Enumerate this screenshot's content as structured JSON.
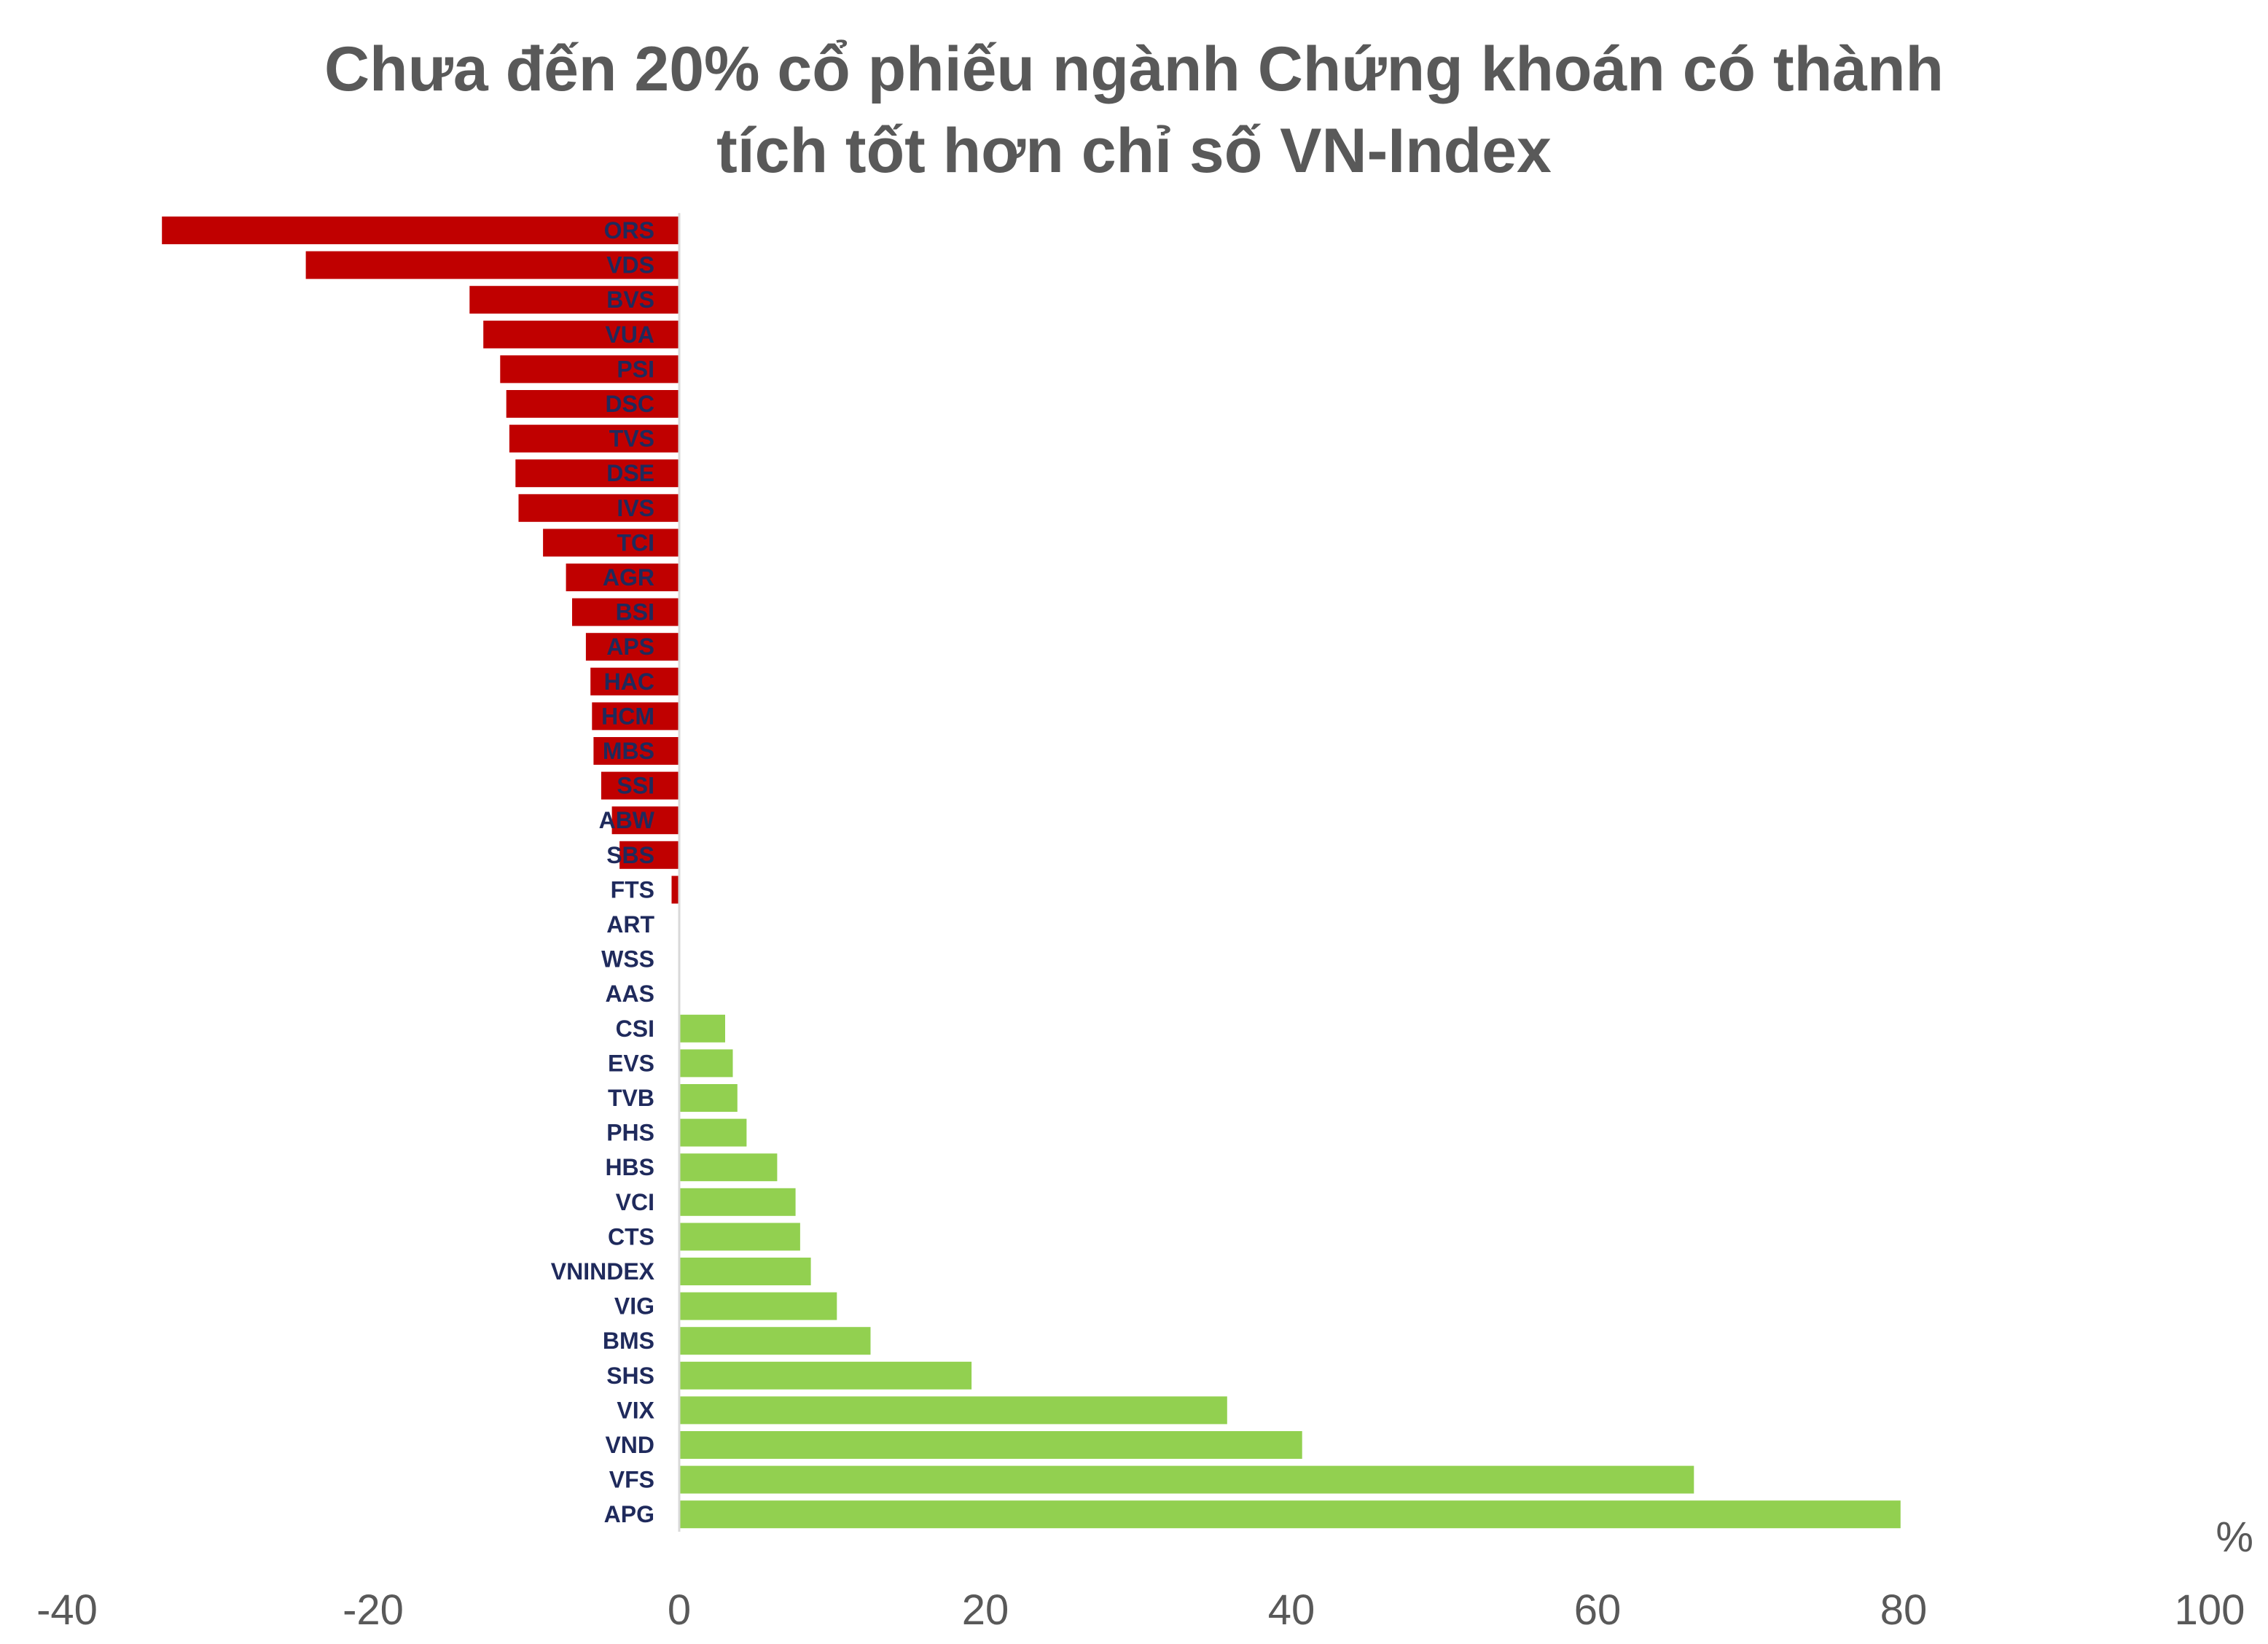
{
  "chart_data": {
    "type": "bar",
    "orientation": "horizontal",
    "title_line1": "Chưa đến 20% cổ phiếu ngành Chứng khoán có thành",
    "title_line2": "tích tốt hơn chỉ số VN-Index",
    "unit": "%",
    "xlim": [
      -40,
      100
    ],
    "x_ticks": [
      "-40",
      "-20",
      "0",
      "20",
      "40",
      "60",
      "80",
      "100"
    ],
    "grid": false,
    "legend": "none",
    "colors": {
      "negative": "#c00000",
      "positive": "#92d050",
      "label": "#1f2a5c",
      "axis_text": "#595959"
    },
    "categories": [
      "ORS",
      "VDS",
      "BVS",
      "VUA",
      "PSI",
      "DSC",
      "TVS",
      "DSE",
      "IVS",
      "TCI",
      "AGR",
      "BSI",
      "APS",
      "HAC",
      "HCM",
      "MBS",
      "SSI",
      "ABW",
      "SBS",
      "FTS",
      "ART",
      "WSS",
      "AAS",
      "CSI",
      "EVS",
      "TVB",
      "PHS",
      "HBS",
      "VCI",
      "CTS",
      "VNINDEX",
      "VIG",
      "BMS",
      "SHS",
      "VIX",
      "VND",
      "VFS",
      "APG"
    ],
    "values": [
      -33.8,
      -24.4,
      -13.7,
      -12.8,
      -11.7,
      -11.3,
      -11.1,
      -10.7,
      -10.5,
      -8.9,
      -7.4,
      -7.0,
      -6.1,
      -5.8,
      -5.7,
      -5.6,
      -5.1,
      -4.4,
      -3.9,
      -0.5,
      0,
      0,
      0,
      3.0,
      3.5,
      3.8,
      4.4,
      6.4,
      7.6,
      7.9,
      8.6,
      10.3,
      12.5,
      19.1,
      35.8,
      40.7,
      66.3,
      79.8
    ]
  }
}
